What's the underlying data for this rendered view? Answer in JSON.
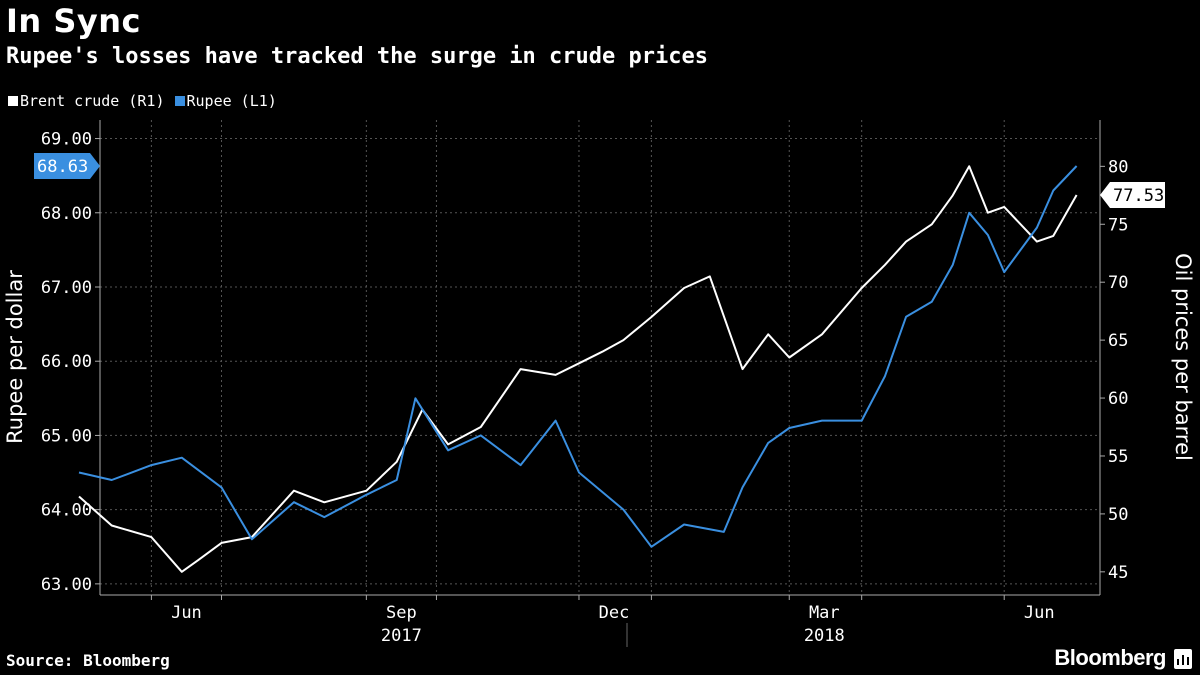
{
  "title": "In Sync",
  "subtitle": "Rupee's losses have tracked the surge in crude prices",
  "source": "Source: Bloomberg",
  "brand": "Bloomberg",
  "chart_data": {
    "type": "line",
    "title": "In Sync",
    "subtitle": "Rupee's losses have tracked the surge in crude prices",
    "legend_position": "top-left",
    "grid": true,
    "x_tick_labels": [
      "Jun",
      "Sep",
      "Dec",
      "Mar",
      "Jun"
    ],
    "x_year_labels": [
      "2017",
      "2018"
    ],
    "left_axis": {
      "label": "Rupee per dollar",
      "range": [
        62.85,
        69.25
      ],
      "ticks": [
        "63.00",
        "64.00",
        "65.00",
        "66.00",
        "67.00",
        "68.00",
        "69.00"
      ],
      "last_value_label": "68.63"
    },
    "right_axis": {
      "label": "Oil prices per barrel",
      "range": [
        43,
        84
      ],
      "ticks": [
        "45",
        "50",
        "55",
        "60",
        "65",
        "70",
        "75",
        "80"
      ],
      "last_value_label": "77.53"
    },
    "series": [
      {
        "name": "Brent crude (R1)",
        "axis": "right",
        "color": "#ffffff",
        "x": [
          "2017-05-01",
          "2017-05-15",
          "2017-06-01",
          "2017-06-14",
          "2017-06-21",
          "2017-07-01",
          "2017-07-14",
          "2017-08-01",
          "2017-08-14",
          "2017-09-01",
          "2017-09-14",
          "2017-09-25",
          "2017-10-06",
          "2017-10-20",
          "2017-11-06",
          "2017-11-21",
          "2017-12-01",
          "2017-12-11",
          "2017-12-20",
          "2018-01-01",
          "2018-01-15",
          "2018-01-26",
          "2018-02-09",
          "2018-02-20",
          "2018-03-01",
          "2018-03-15",
          "2018-04-01",
          "2018-04-11",
          "2018-04-20",
          "2018-05-01",
          "2018-05-10",
          "2018-05-17",
          "2018-05-25",
          "2018-06-01",
          "2018-06-15",
          "2018-06-22",
          "2018-07-02"
        ],
        "values": [
          51.5,
          49.0,
          48.0,
          45.0,
          46.0,
          47.5,
          48.0,
          52.0,
          51.0,
          52.0,
          54.5,
          59.0,
          56.0,
          57.5,
          62.5,
          62.0,
          63.0,
          64.0,
          65.0,
          67.0,
          69.5,
          70.5,
          62.5,
          65.5,
          63.5,
          65.5,
          69.5,
          71.5,
          73.5,
          75.0,
          77.5,
          80.0,
          76.0,
          76.5,
          73.5,
          74.0,
          77.53
        ]
      },
      {
        "name": "Rupee (L1)",
        "axis": "left",
        "color": "#3a8fe0",
        "x": [
          "2017-05-01",
          "2017-05-15",
          "2017-06-01",
          "2017-06-14",
          "2017-07-01",
          "2017-07-14",
          "2017-08-01",
          "2017-08-14",
          "2017-09-01",
          "2017-09-14",
          "2017-09-22",
          "2017-10-06",
          "2017-10-20",
          "2017-11-06",
          "2017-11-21",
          "2017-12-01",
          "2017-12-20",
          "2018-01-01",
          "2018-01-15",
          "2018-02-01",
          "2018-02-09",
          "2018-02-20",
          "2018-03-01",
          "2018-03-15",
          "2018-04-01",
          "2018-04-11",
          "2018-04-20",
          "2018-05-01",
          "2018-05-10",
          "2018-05-17",
          "2018-05-25",
          "2018-06-01",
          "2018-06-15",
          "2018-06-22",
          "2018-07-02"
        ],
        "values": [
          64.5,
          64.4,
          64.6,
          64.7,
          64.3,
          63.6,
          64.1,
          63.9,
          64.2,
          64.4,
          65.5,
          64.8,
          65.0,
          64.6,
          65.2,
          64.5,
          64.0,
          63.5,
          63.8,
          63.7,
          64.3,
          64.9,
          65.1,
          65.2,
          65.2,
          65.8,
          66.6,
          66.8,
          67.3,
          68.0,
          67.7,
          67.2,
          67.8,
          68.3,
          68.63
        ]
      }
    ]
  }
}
